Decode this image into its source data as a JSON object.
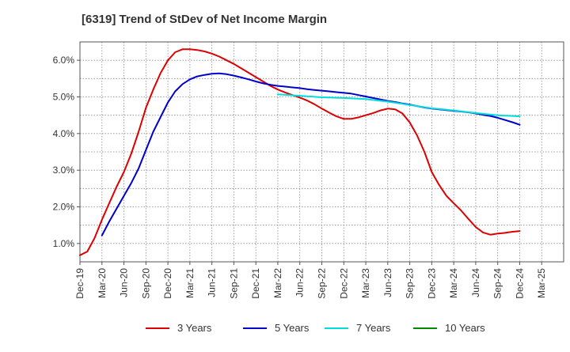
{
  "title": "[6319]  Trend of StDev of Net Income Margin",
  "chart_data": {
    "type": "line",
    "title": "[6319]  Trend of StDev of Net Income Margin",
    "xlabel": "",
    "ylabel": "",
    "x_ticks": [
      "Dec-19",
      "Mar-20",
      "Jun-20",
      "Sep-20",
      "Dec-20",
      "Mar-21",
      "Jun-21",
      "Sep-21",
      "Dec-21",
      "Mar-22",
      "Jun-22",
      "Sep-22",
      "Dec-22",
      "Mar-23",
      "Jun-23",
      "Sep-23",
      "Dec-23",
      "Mar-24",
      "Jun-24",
      "Sep-24",
      "Dec-24",
      "Mar-25"
    ],
    "y_ticks": [
      "1.0%",
      "2.0%",
      "3.0%",
      "4.0%",
      "5.0%",
      "6.0%"
    ],
    "ylim": [
      0.5,
      6.5
    ],
    "grid": true,
    "legend_position": "bottom",
    "series": [
      {
        "name": "3 Years",
        "color": "#dd0000",
        "x": [
          "2019-12",
          "2020-01",
          "2020-02",
          "2020-03",
          "2020-04",
          "2020-05",
          "2020-06",
          "2020-07",
          "2020-08",
          "2020-09",
          "2020-10",
          "2020-11",
          "2020-12",
          "2021-01",
          "2021-02",
          "2021-03",
          "2021-04",
          "2021-05",
          "2021-06",
          "2021-07",
          "2021-08",
          "2021-09",
          "2021-10",
          "2021-11",
          "2021-12",
          "2022-01",
          "2022-02",
          "2022-03",
          "2022-04",
          "2022-05",
          "2022-06",
          "2022-07",
          "2022-08",
          "2022-09",
          "2022-10",
          "2022-11",
          "2022-12",
          "2023-01",
          "2023-02",
          "2023-03",
          "2023-04",
          "2023-05",
          "2023-06",
          "2023-07",
          "2023-08",
          "2023-09",
          "2023-10",
          "2023-11",
          "2023-12",
          "2024-01",
          "2024-02",
          "2024-03",
          "2024-04",
          "2024-05",
          "2024-06",
          "2024-07",
          "2024-08",
          "2024-09",
          "2024-10",
          "2024-11",
          "2024-12"
        ],
        "values": [
          0.68,
          0.78,
          1.15,
          1.65,
          2.1,
          2.55,
          2.95,
          3.45,
          4.05,
          4.7,
          5.2,
          5.65,
          6.0,
          6.22,
          6.3,
          6.3,
          6.28,
          6.24,
          6.18,
          6.1,
          6.0,
          5.9,
          5.78,
          5.66,
          5.54,
          5.42,
          5.3,
          5.2,
          5.12,
          5.05,
          4.98,
          4.9,
          4.8,
          4.68,
          4.57,
          4.47,
          4.4,
          4.4,
          4.44,
          4.5,
          4.56,
          4.63,
          4.68,
          4.66,
          4.55,
          4.3,
          3.95,
          3.5,
          2.95,
          2.6,
          2.3,
          2.1,
          1.9,
          1.67,
          1.45,
          1.3,
          1.24,
          1.27,
          1.29,
          1.32,
          1.34
        ]
      },
      {
        "name": "5 Years",
        "color": "#0000cc",
        "x": [
          "2020-03",
          "2020-04",
          "2020-05",
          "2020-06",
          "2020-07",
          "2020-08",
          "2020-09",
          "2020-10",
          "2020-11",
          "2020-12",
          "2021-01",
          "2021-02",
          "2021-03",
          "2021-04",
          "2021-05",
          "2021-06",
          "2021-07",
          "2021-08",
          "2021-09",
          "2021-10",
          "2021-11",
          "2021-12",
          "2022-01",
          "2022-02",
          "2022-03",
          "2022-04",
          "2022-05",
          "2022-06",
          "2022-07",
          "2022-08",
          "2022-09",
          "2022-10",
          "2022-11",
          "2022-12",
          "2023-01",
          "2023-02",
          "2023-03",
          "2023-04",
          "2023-05",
          "2023-06",
          "2023-07",
          "2023-08",
          "2023-09",
          "2023-10",
          "2023-11",
          "2023-12",
          "2024-01",
          "2024-02",
          "2024-03",
          "2024-04",
          "2024-05",
          "2024-06",
          "2024-07",
          "2024-08",
          "2024-09",
          "2024-10",
          "2024-11",
          "2024-12"
        ],
        "values": [
          1.22,
          1.6,
          1.95,
          2.3,
          2.65,
          3.05,
          3.55,
          4.05,
          4.45,
          4.85,
          5.15,
          5.35,
          5.48,
          5.56,
          5.6,
          5.63,
          5.64,
          5.62,
          5.58,
          5.53,
          5.48,
          5.42,
          5.37,
          5.33,
          5.3,
          5.28,
          5.26,
          5.24,
          5.21,
          5.19,
          5.17,
          5.15,
          5.13,
          5.11,
          5.09,
          5.05,
          5.01,
          4.97,
          4.93,
          4.89,
          4.86,
          4.82,
          4.79,
          4.75,
          4.71,
          4.68,
          4.66,
          4.64,
          4.62,
          4.6,
          4.58,
          4.55,
          4.51,
          4.48,
          4.43,
          4.37,
          4.31,
          4.24
        ]
      },
      {
        "name": "7 Years",
        "color": "#00dddd",
        "x": [
          "2022-03",
          "2022-06",
          "2022-09",
          "2022-12",
          "2023-03",
          "2023-06",
          "2023-09",
          "2023-12",
          "2024-03",
          "2024-06",
          "2024-09",
          "2024-12"
        ],
        "values": [
          5.07,
          5.03,
          4.99,
          4.97,
          4.94,
          4.87,
          4.78,
          4.69,
          4.63,
          4.56,
          4.5,
          4.47
        ]
      },
      {
        "name": "10 Years",
        "color": "#008800",
        "x": [],
        "values": []
      }
    ]
  }
}
